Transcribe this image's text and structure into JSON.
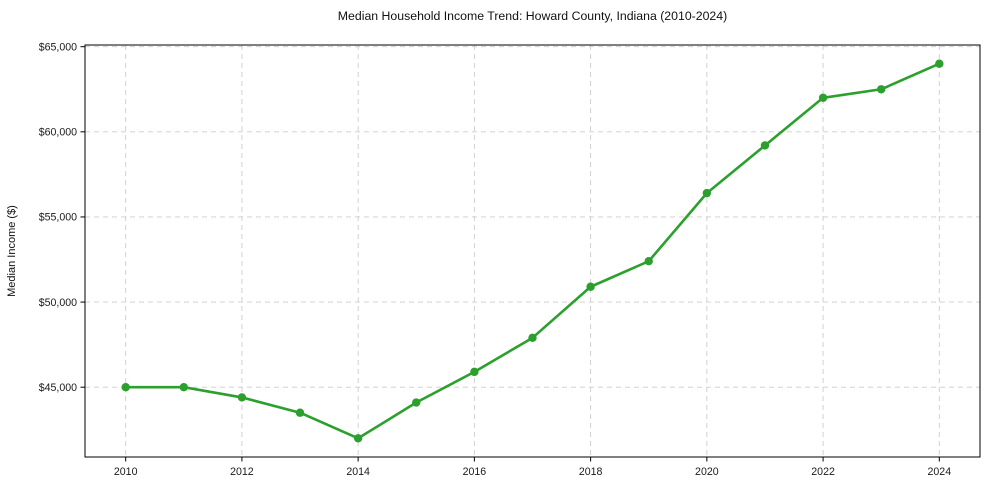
{
  "chart_data": {
    "type": "line",
    "title": "Median Household Income Trend: Howard County, Indiana (2010-2024)",
    "xlabel": "",
    "ylabel": "Median Income ($)",
    "x": [
      2010,
      2011,
      2012,
      2013,
      2014,
      2015,
      2016,
      2017,
      2018,
      2019,
      2020,
      2021,
      2022,
      2023,
      2024
    ],
    "series": [
      {
        "name": "Median Household Income",
        "values": [
          45000,
          45000,
          44400,
          43500,
          42000,
          44100,
          45900,
          47900,
          50900,
          52400,
          56400,
          59200,
          62000,
          62500,
          64000
        ]
      }
    ],
    "xticks": [
      2010,
      2012,
      2014,
      2016,
      2018,
      2020,
      2022,
      2024
    ],
    "xtick_labels": [
      "2010",
      "2012",
      "2014",
      "2016",
      "2018",
      "2020",
      "2022",
      "2024"
    ],
    "yticks": [
      45000,
      50000,
      55000,
      60000,
      65000
    ],
    "ytick_labels": [
      "$45,000",
      "$50,000",
      "$55,000",
      "$60,000",
      "$65,000"
    ],
    "xlim": [
      2009.3,
      2024.7
    ],
    "ylim": [
      40900,
      65100
    ],
    "grid": true,
    "grid_line_style": "dashed",
    "legend_position": "none",
    "line_color": "#2ca02c",
    "marker_color": "#2ca02c",
    "grid_color": "#cccccc",
    "spine_color": "#000000",
    "background_color": "#ffffff"
  }
}
